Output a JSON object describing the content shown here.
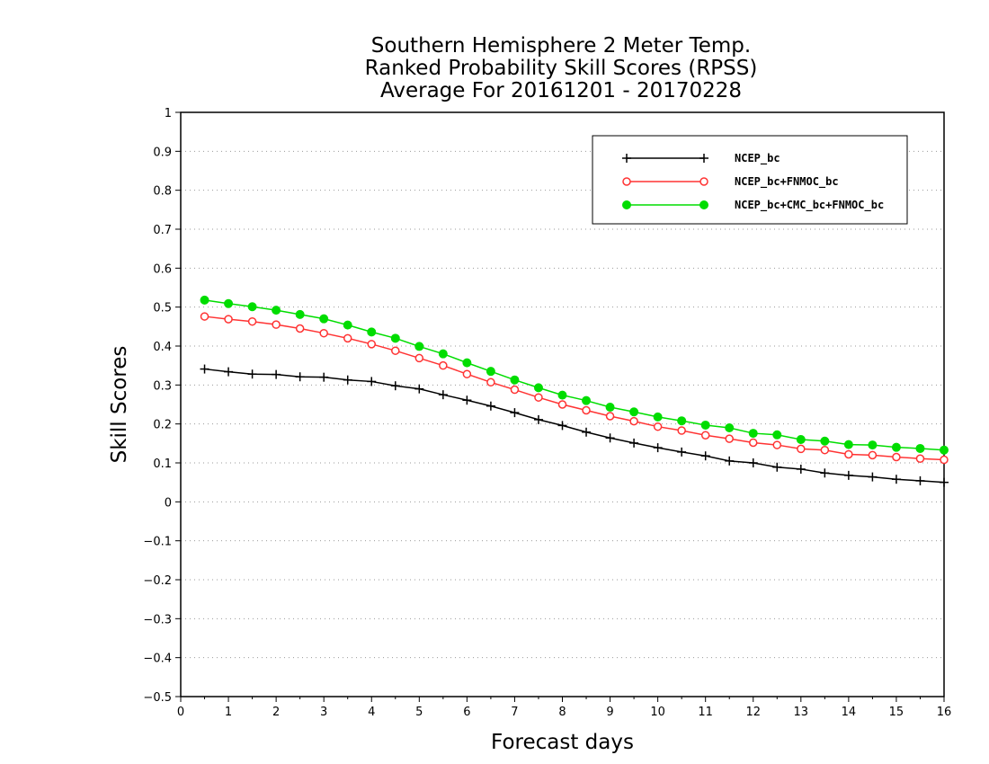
{
  "chart_data": {
    "type": "line",
    "title_lines": [
      "Southern Hemisphere 2 Meter Temp.",
      "Ranked Probability Skill Scores (RPSS)",
      "Average For 20161201 - 20170228"
    ],
    "xlabel": "Forecast days",
    "ylabel": "Skill Scores",
    "xlim": [
      0,
      16
    ],
    "ylim": [
      -0.5,
      1
    ],
    "x_ticks": [
      0,
      1,
      2,
      3,
      4,
      5,
      6,
      7,
      8,
      9,
      10,
      11,
      12,
      13,
      14,
      15,
      16
    ],
    "x_tick_labels": [
      "0",
      "1",
      "2",
      "3",
      "4",
      "5",
      "6",
      "7",
      "8",
      "9",
      "10",
      "11",
      "12",
      "13",
      "14",
      "15",
      "16"
    ],
    "y_ticks": [
      -0.5,
      -0.4,
      -0.3,
      -0.2,
      -0.1,
      0,
      0.1,
      0.2,
      0.3,
      0.4,
      0.5,
      0.6,
      0.7,
      0.8,
      0.9,
      1
    ],
    "y_tick_labels": [
      "−0.5",
      "−0.4",
      "−0.3",
      "−0.2",
      "−0.1",
      "0",
      "0.1",
      "0.2",
      "0.3",
      "0.4",
      "0.5",
      "0.6",
      "0.7",
      "0.8",
      "0.9",
      "1"
    ],
    "grid": "horizontal dotted",
    "legend_position": "top-right",
    "x": [
      0.5,
      1,
      1.5,
      2,
      2.5,
      3,
      3.5,
      4,
      4.5,
      5,
      5.5,
      6,
      6.5,
      7,
      7.5,
      8,
      8.5,
      9,
      9.5,
      10,
      10.5,
      11,
      11.5,
      12,
      12.5,
      13,
      13.5,
      14,
      14.5,
      15,
      15.5,
      16
    ],
    "series": [
      {
        "name": "NCEP_bc",
        "color": "#000000",
        "marker": "plus",
        "values": [
          0.341,
          0.334,
          0.328,
          0.327,
          0.321,
          0.32,
          0.313,
          0.309,
          0.298,
          0.29,
          0.275,
          0.261,
          0.246,
          0.229,
          0.211,
          0.196,
          0.179,
          0.164,
          0.151,
          0.139,
          0.128,
          0.118,
          0.105,
          0.1,
          0.089,
          0.084,
          0.074,
          0.068,
          0.064,
          0.058,
          0.054,
          0.05
        ]
      },
      {
        "name": "NCEP_bc+FNMOC_bc",
        "color": "#ff3333",
        "marker": "open-circle",
        "values": [
          0.476,
          0.469,
          0.463,
          0.455,
          0.445,
          0.433,
          0.42,
          0.405,
          0.388,
          0.369,
          0.35,
          0.328,
          0.307,
          0.288,
          0.268,
          0.25,
          0.235,
          0.22,
          0.207,
          0.193,
          0.183,
          0.171,
          0.162,
          0.152,
          0.146,
          0.136,
          0.133,
          0.122,
          0.12,
          0.115,
          0.111,
          0.108
        ]
      },
      {
        "name": "NCEP_bc+CMC_bc+FNMOC_bc",
        "color": "#00dd00",
        "marker": "filled-circle",
        "values": [
          0.518,
          0.509,
          0.501,
          0.492,
          0.481,
          0.47,
          0.454,
          0.436,
          0.42,
          0.399,
          0.38,
          0.357,
          0.335,
          0.313,
          0.293,
          0.274,
          0.26,
          0.243,
          0.231,
          0.218,
          0.208,
          0.197,
          0.19,
          0.176,
          0.172,
          0.16,
          0.156,
          0.147,
          0.146,
          0.14,
          0.137,
          0.133
        ]
      }
    ]
  }
}
